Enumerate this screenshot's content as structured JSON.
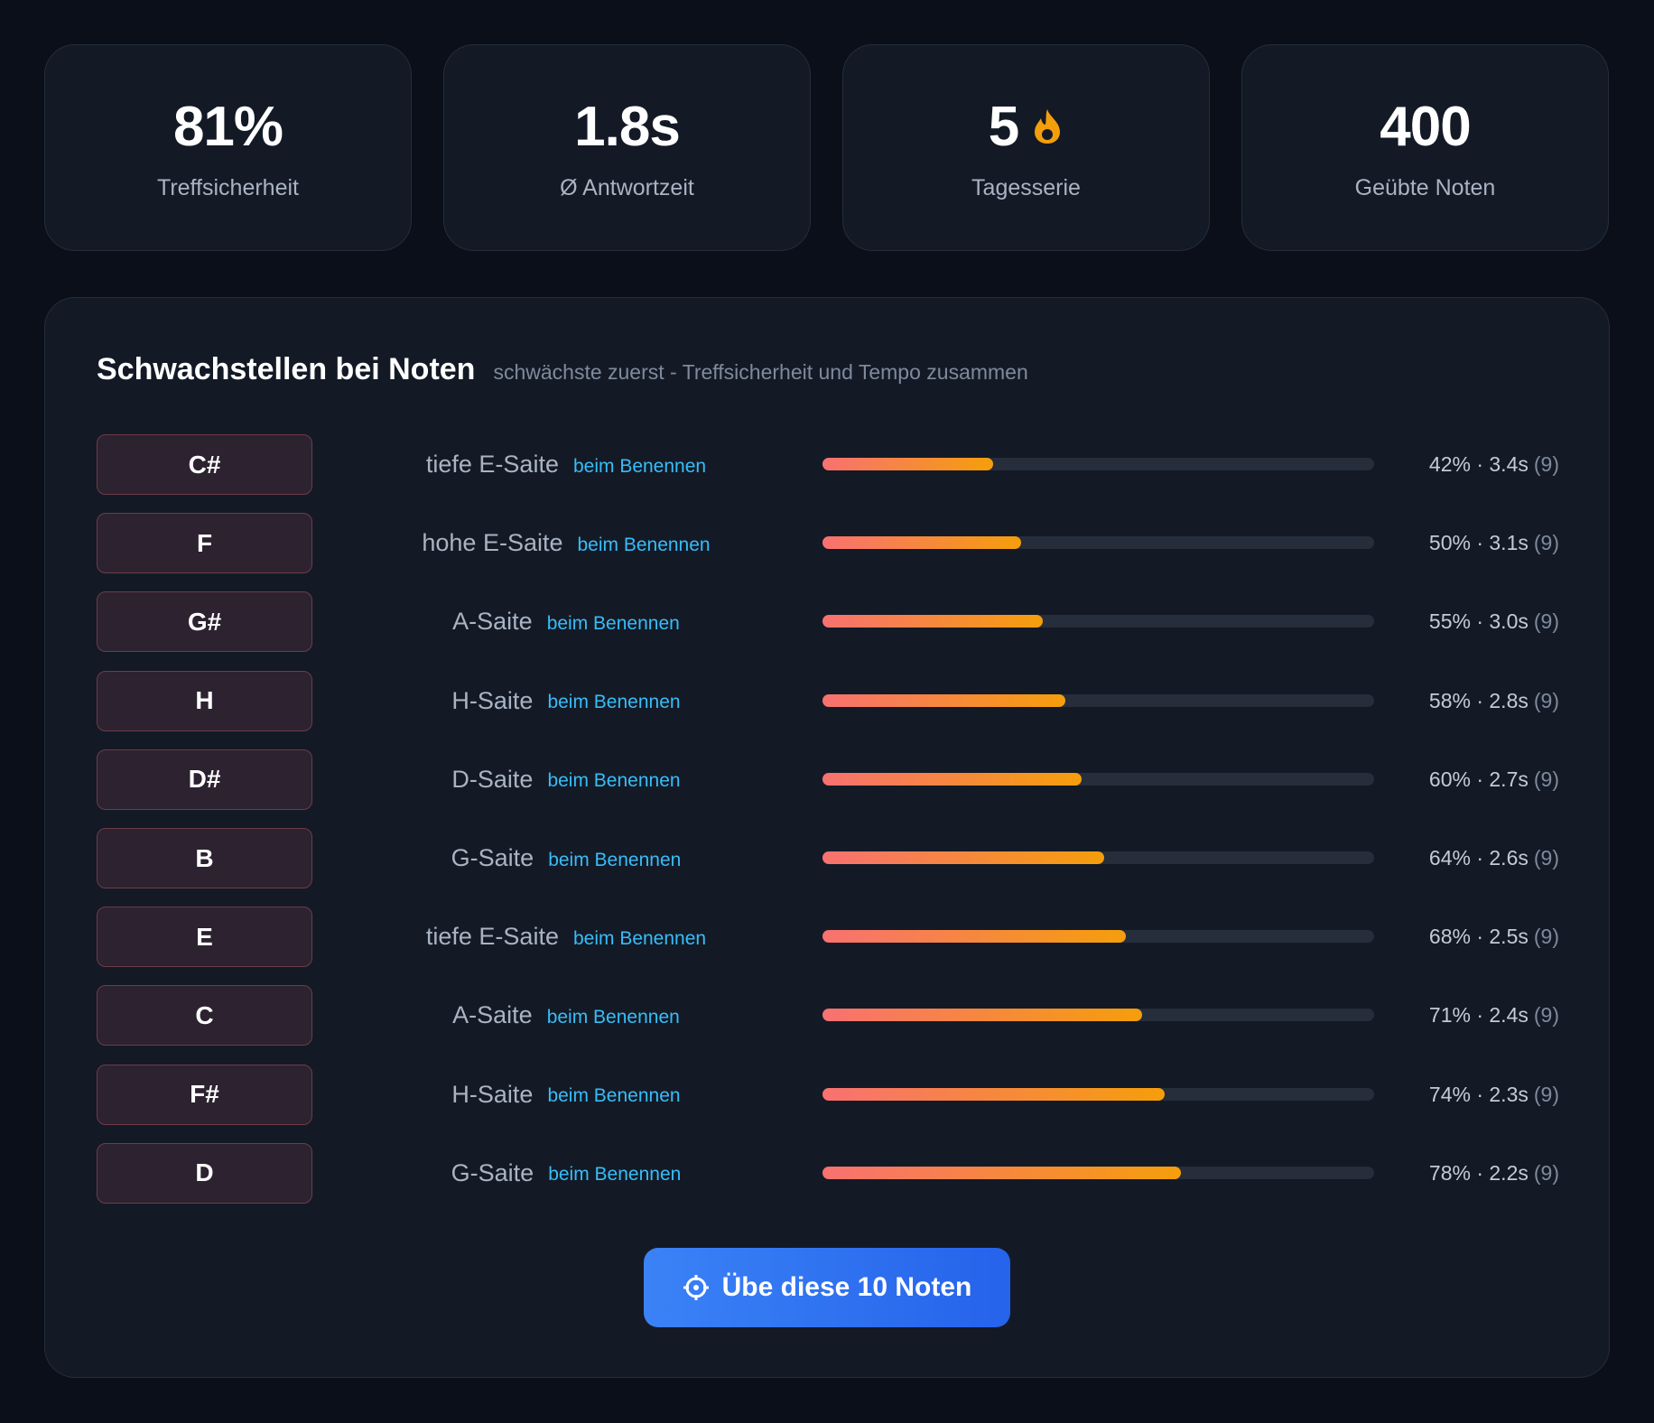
{
  "stats": [
    {
      "value": "81%",
      "label": "Treffsicherheit"
    },
    {
      "value": "1.8s",
      "label": "Ø Antwortzeit"
    },
    {
      "value": "5",
      "label": "Tagesserie"
    },
    {
      "value": "400",
      "label": "Geübte Noten"
    }
  ],
  "panel": {
    "title": "Schwachstellen bei Noten",
    "subtitle": "schwächste zuerst - Treffsicherheit und Tempo zusammen",
    "rows": [
      {
        "note": "C#",
        "string": "tiefe E-Saite",
        "mode": "beim Benennen",
        "score": 31,
        "stat": "42% · 3.4s",
        "count": "(9)"
      },
      {
        "note": "F",
        "string": "hohe E-Saite",
        "mode": "beim Benennen",
        "score": 36,
        "stat": "50% · 3.1s",
        "count": "(9)"
      },
      {
        "note": "G#",
        "string": "A-Saite",
        "mode": "beim Benennen",
        "score": 40,
        "stat": "55% · 3.0s",
        "count": "(9)"
      },
      {
        "note": "H",
        "string": "H-Saite",
        "mode": "beim Benennen",
        "score": 44,
        "stat": "58% · 2.8s",
        "count": "(9)"
      },
      {
        "note": "D#",
        "string": "D-Saite",
        "mode": "beim Benennen",
        "score": 47,
        "stat": "60% · 2.7s",
        "count": "(9)"
      },
      {
        "note": "B",
        "string": "G-Saite",
        "mode": "beim Benennen",
        "score": 51,
        "stat": "64% · 2.6s",
        "count": "(9)"
      },
      {
        "note": "E",
        "string": "tiefe E-Saite",
        "mode": "beim Benennen",
        "score": 55,
        "stat": "68% · 2.5s",
        "count": "(9)"
      },
      {
        "note": "C",
        "string": "A-Saite",
        "mode": "beim Benennen",
        "score": 58,
        "stat": "71% · 2.4s",
        "count": "(9)"
      },
      {
        "note": "F#",
        "string": "H-Saite",
        "mode": "beim Benennen",
        "score": 62,
        "stat": "74% · 2.3s",
        "count": "(9)"
      },
      {
        "note": "D",
        "string": "G-Saite",
        "mode": "beim Benennen",
        "score": 65,
        "stat": "78% · 2.2s",
        "count": "(9)"
      }
    ],
    "button": "Übe diese 10 Noten"
  }
}
